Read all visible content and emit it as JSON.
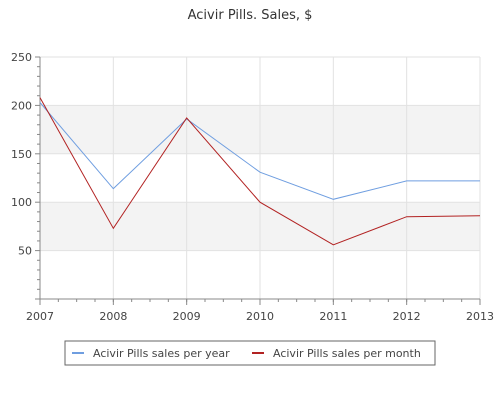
{
  "chart_data": {
    "type": "line",
    "title": "Acivir Pills. Sales, $",
    "xlabel": "",
    "ylabel": "",
    "categories": [
      "2007",
      "2008",
      "2009",
      "2010",
      "2011",
      "2012",
      "2013"
    ],
    "ylim": [
      0,
      250
    ],
    "yticks": [
      "0",
      "50",
      "100",
      "150",
      "200",
      "250"
    ],
    "grid": true,
    "legend_position": "bottom-center",
    "series": [
      {
        "name": "Acivir Pills sales per year",
        "color": "#6f9ee0",
        "values": [
          203,
          114,
          186,
          131,
          103,
          122,
          122
        ]
      },
      {
        "name": "Acivir Pills sales per month",
        "color": "#b22222",
        "values": [
          208,
          73,
          187,
          100,
          56,
          85,
          86
        ]
      }
    ]
  }
}
